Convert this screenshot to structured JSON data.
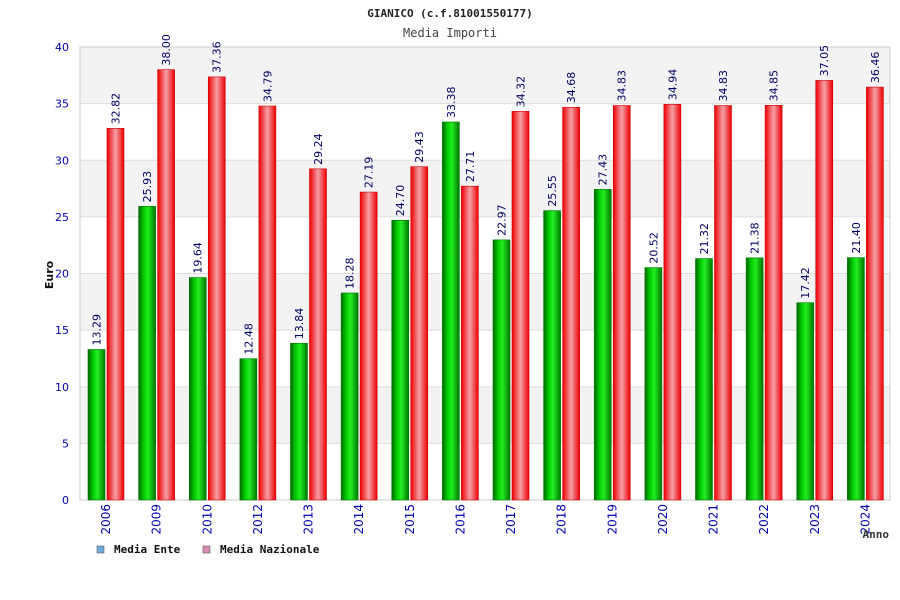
{
  "chart_data": {
    "type": "bar",
    "title": "GIANICO (c.f.81001550177)",
    "subtitle": "Media Importi",
    "ylabel": "Euro",
    "xlabel": "Anno",
    "ylim": [
      0,
      40
    ],
    "yticks": [
      0,
      5,
      10,
      15,
      20,
      25,
      30,
      35,
      40
    ],
    "grid": true,
    "legend_position": "bottom-left",
    "categories": [
      "2006",
      "2009",
      "2010",
      "2012",
      "2013",
      "2014",
      "2015",
      "2016",
      "2017",
      "2018",
      "2019",
      "2020",
      "2021",
      "2022",
      "2023",
      "2024"
    ],
    "series": [
      {
        "name": "Media Ente",
        "color": "#00bb00",
        "legend_color": "#6fa8dc",
        "values": [
          13.29,
          25.93,
          19.64,
          12.48,
          13.84,
          18.28,
          24.7,
          33.38,
          22.97,
          25.55,
          27.43,
          20.52,
          21.32,
          21.38,
          17.42,
          21.4
        ],
        "labels": [
          "13.29",
          "25.93",
          "19.64",
          "12.48",
          "13.84",
          "18.28",
          "24.70",
          "33.38",
          "22.97",
          "25.55",
          "27.43",
          "20.52",
          "21.32",
          "21.38",
          "17.42",
          "21.40"
        ]
      },
      {
        "name": "Media Nazionale",
        "color": "#ee1111",
        "legend_color": "#d98cb3",
        "values": [
          32.82,
          38.0,
          37.36,
          34.79,
          29.24,
          27.19,
          29.43,
          27.71,
          34.32,
          34.68,
          34.83,
          34.94,
          34.83,
          34.85,
          37.05,
          36.46
        ],
        "labels": [
          "32.82",
          "38.00",
          "37.36",
          "34.79",
          "29.24",
          "27.19",
          "29.43",
          "27.71",
          "34.32",
          "34.68",
          "34.83",
          "34.94",
          "34.83",
          "34.85",
          "37.05",
          "36.46"
        ]
      }
    ]
  }
}
